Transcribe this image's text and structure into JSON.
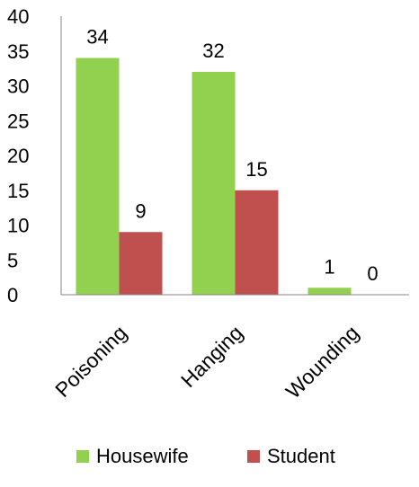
{
  "chart_data": {
    "type": "bar",
    "categories": [
      "Poisoning",
      "Hanging",
      "Wounding"
    ],
    "series": [
      {
        "name": "Housewife",
        "values": [
          34,
          32,
          1
        ],
        "color": "#92d050"
      },
      {
        "name": "Student",
        "values": [
          9,
          15,
          0
        ],
        "color": "#c0504d"
      }
    ],
    "ylim": [
      0,
      40
    ],
    "yticks": [
      0,
      5,
      10,
      15,
      20,
      25,
      30,
      35,
      40
    ],
    "data_labels": true,
    "grid": false,
    "legend_position": "bottom"
  }
}
